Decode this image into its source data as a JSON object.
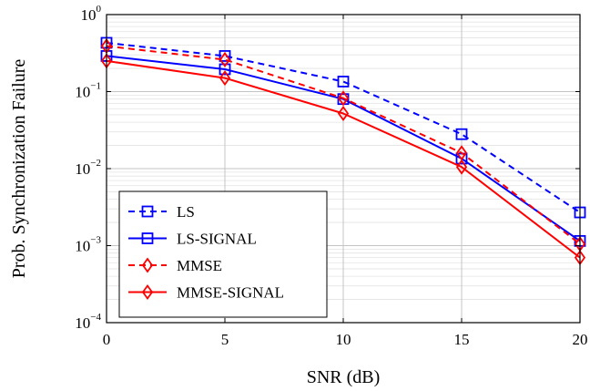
{
  "chart_data": {
    "type": "line",
    "xlabel": "SNR (dB)",
    "ylabel": "Prob. Synchronization Failure",
    "x": [
      0,
      5,
      10,
      15,
      20
    ],
    "xlim": [
      0,
      20
    ],
    "xticks": [
      "0",
      "5",
      "10",
      "15",
      "20"
    ],
    "yscale": "log",
    "ylim": [
      0.0001,
      1
    ],
    "yticks": [
      {
        "base": "10",
        "exp": "0"
      },
      {
        "base": "10",
        "exp": "−1"
      },
      {
        "base": "10",
        "exp": "−2"
      },
      {
        "base": "10",
        "exp": "−3"
      },
      {
        "base": "10",
        "exp": "−4"
      }
    ],
    "grid": true,
    "legend_position": "bottom-left",
    "series": [
      {
        "name": "LS",
        "values": [
          0.43,
          0.29,
          0.135,
          0.028,
          0.0027
        ],
        "color": "#0000ff",
        "dashed": true,
        "marker": "square"
      },
      {
        "name": "LS-SIGNAL",
        "values": [
          0.29,
          0.195,
          0.08,
          0.0135,
          0.00115
        ],
        "color": "#0000ff",
        "dashed": false,
        "marker": "square"
      },
      {
        "name": "MMSE",
        "values": [
          0.39,
          0.26,
          0.082,
          0.016,
          0.00105
        ],
        "color": "#ff0000",
        "dashed": true,
        "marker": "diamond"
      },
      {
        "name": "MMSE-SIGNAL",
        "values": [
          0.25,
          0.15,
          0.052,
          0.0105,
          0.0007
        ],
        "color": "#ff0000",
        "dashed": false,
        "marker": "diamond"
      }
    ]
  }
}
